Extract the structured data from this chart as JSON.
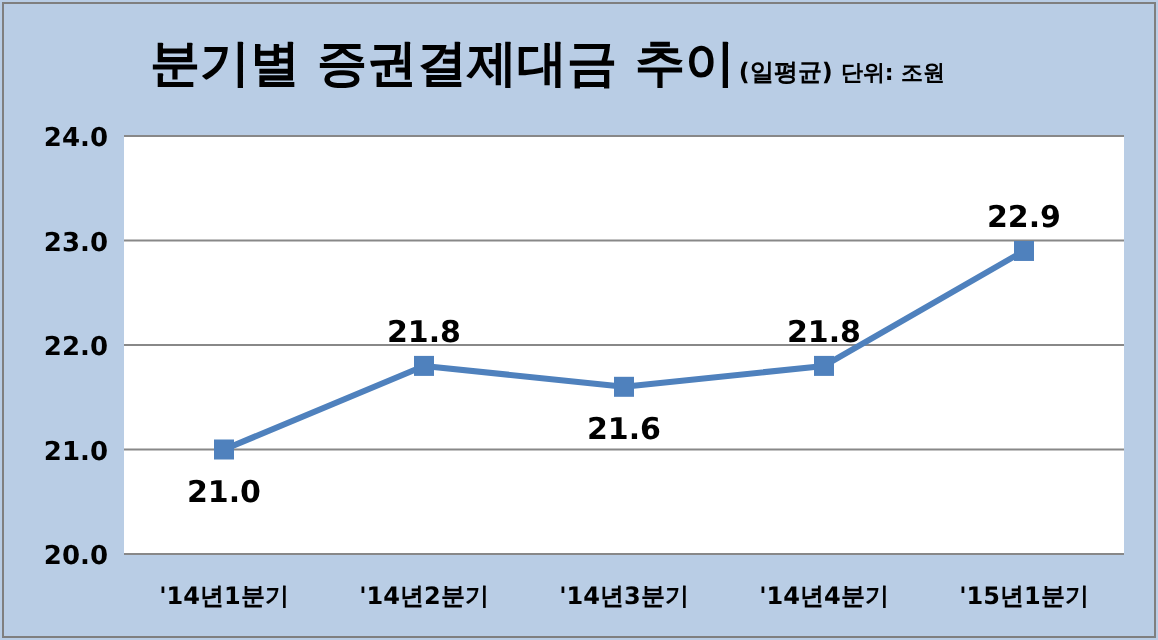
{
  "chart_data": {
    "type": "line",
    "title": "분기별 증권결제대금 추이",
    "subtitle": "(일평균)",
    "annotations": [
      "단위: 조원"
    ],
    "categories": [
      "'14년1분기",
      "'14년2분기",
      "'14년3분기",
      "'14년4분기",
      "'15년1분기"
    ],
    "series": [
      {
        "color": "#4f81bd",
        "values": [
          21.0,
          21.8,
          21.6,
          21.8,
          22.9
        ],
        "value_labels": [
          "21.0",
          "21.8",
          "21.6",
          "21.8",
          "22.9"
        ]
      }
    ],
    "ylim": [
      20,
      24
    ],
    "yticks": [
      {
        "value": 20,
        "label": "20.0"
      },
      {
        "value": 21,
        "label": "21.0"
      },
      {
        "value": 22,
        "label": "22.0"
      },
      {
        "value": 23,
        "label": "23.0"
      },
      {
        "value": 24,
        "label": "24.0"
      }
    ],
    "grid": "y",
    "marker": "square",
    "line_style": "solid"
  }
}
